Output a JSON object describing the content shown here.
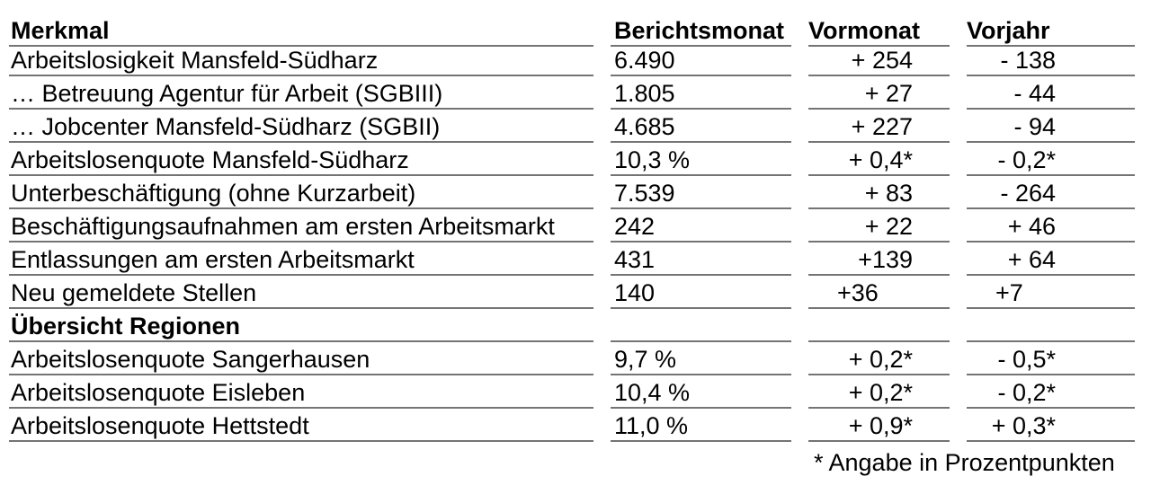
{
  "table": {
    "columns": [
      "Merkmal",
      "Berichtsmonat",
      "Vormonat",
      "Vorjahr"
    ],
    "rows": [
      {
        "merkmal": "Arbeitslosigkeit Mansfeld-Südharz",
        "berichtsmonat": "6.490",
        "vormonat": "+ 254",
        "vorjahr": "- 138"
      },
      {
        "merkmal": "… Betreuung Agentur für Arbeit (SGBIII)",
        "berichtsmonat": "1.805",
        "vormonat": "+ 27",
        "vorjahr": "- 44"
      },
      {
        "merkmal": "… Jobcenter Mansfeld-Südharz (SGBII)",
        "berichtsmonat": "4.685",
        "vormonat": "+ 227",
        "vorjahr": "- 94"
      },
      {
        "merkmal": "Arbeitslosenquote Mansfeld-Südharz",
        "berichtsmonat": "10,3 %",
        "vormonat": "+ 0,4*",
        "vorjahr": "- 0,2*"
      },
      {
        "merkmal": "Unterbeschäftigung (ohne Kurzarbeit)",
        "berichtsmonat": "7.539",
        "vormonat": "+ 83",
        "vorjahr": "- 264"
      },
      {
        "merkmal": "Beschäftigungsaufnahmen am ersten Arbeitsmarkt",
        "berichtsmonat": "242",
        "vormonat": "+ 22",
        "vorjahr": "+ 46"
      },
      {
        "merkmal": "Entlassungen am ersten Arbeitsmarkt",
        "berichtsmonat": "431",
        "vormonat": "+139",
        "vorjahr": "+ 64"
      },
      {
        "merkmal": "Neu gemeldete Stellen",
        "berichtsmonat": "140",
        "vormonat": "+36",
        "vorjahr": "+7",
        "align": "left"
      },
      {
        "type": "section",
        "merkmal": "Übersicht Regionen"
      },
      {
        "merkmal": "Arbeitslosenquote Sangerhausen",
        "berichtsmonat": "9,7 %",
        "vormonat": "+ 0,2*",
        "vorjahr": "- 0,5*"
      },
      {
        "merkmal": "Arbeitslosenquote Eisleben",
        "berichtsmonat": "10,4 %",
        "vormonat": "+ 0,2*",
        "vorjahr": "- 0,2*"
      },
      {
        "merkmal": "Arbeitslosenquote Hettstedt",
        "berichtsmonat": "11,0 %",
        "vormonat": "+ 0,9*",
        "vorjahr": "+ 0,3*"
      }
    ]
  },
  "footnote": "* Angabe in Prozentpunkten",
  "colors": {
    "rule": "#747474",
    "text": "#000000",
    "background": "#ffffff"
  }
}
